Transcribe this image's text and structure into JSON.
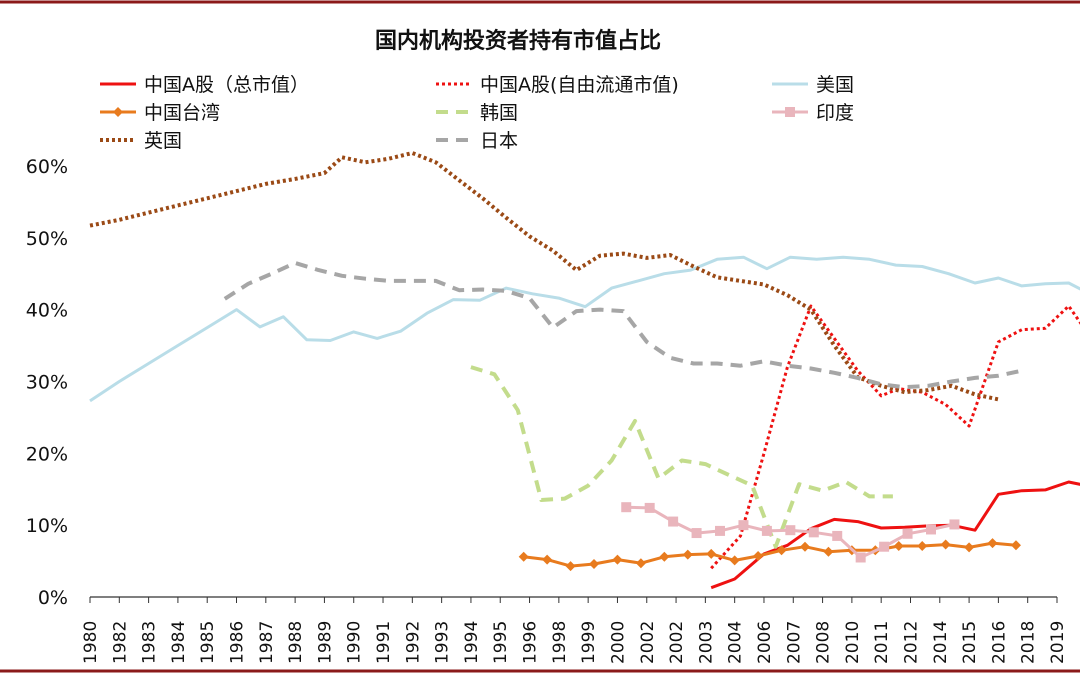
{
  "chart_data": {
    "type": "line",
    "title": "国内机构投资者持有市值占比",
    "xlabel": "",
    "ylabel": "",
    "ylim": [
      0,
      0.65
    ],
    "y_ticks": [
      {
        "value": 0.0,
        "label": "0%"
      },
      {
        "value": 0.1,
        "label": "10%"
      },
      {
        "value": 0.2,
        "label": "20%"
      },
      {
        "value": 0.3,
        "label": "30%"
      },
      {
        "value": 0.4,
        "label": "40%"
      },
      {
        "value": 0.5,
        "label": "50%"
      },
      {
        "value": 0.6,
        "label": "60%"
      }
    ],
    "x_tick_labels": [
      "1980",
      "1982",
      "1983",
      "1984",
      "1985",
      "1986",
      "1987",
      "1988",
      "1989",
      "1990",
      "1991",
      "1992",
      "1993",
      "1994",
      "1995",
      "1996",
      "1998",
      "1999",
      "2000",
      "2002",
      "2002",
      "2003",
      "2004",
      "2006",
      "2007",
      "2008",
      "2010",
      "2011",
      "2012",
      "2014",
      "2015",
      "2016",
      "2018",
      "2019"
    ],
    "grid": false,
    "legend_position": "top-left",
    "series": [
      {
        "name": "中国A股（总市值）",
        "color": "#ee1111",
        "style": "solid",
        "marker": "none",
        "width": 3,
        "points": [
          [
            21.2,
            0.013
          ],
          [
            22.0,
            0.025
          ],
          [
            23.0,
            0.06
          ],
          [
            23.8,
            0.072
          ],
          [
            24.6,
            0.095
          ],
          [
            25.4,
            0.108
          ],
          [
            26.2,
            0.105
          ],
          [
            27.0,
            0.096
          ],
          [
            27.8,
            0.097
          ],
          [
            28.6,
            0.099
          ],
          [
            29.4,
            0.1
          ],
          [
            30.2,
            0.093
          ],
          [
            31.0,
            0.143
          ],
          [
            31.8,
            0.148
          ],
          [
            32.6,
            0.149
          ],
          [
            33.4,
            0.16
          ],
          [
            34.0,
            0.155
          ]
        ]
      },
      {
        "name": "中国A股(自由流通市值)",
        "color": "#ee1111",
        "style": "dotted",
        "marker": "none",
        "width": 3,
        "points": [
          [
            21.2,
            0.04
          ],
          [
            22.2,
            0.085
          ],
          [
            23.0,
            0.2
          ],
          [
            23.8,
            0.32
          ],
          [
            24.6,
            0.405
          ],
          [
            25.4,
            0.36
          ],
          [
            26.2,
            0.315
          ],
          [
            27.0,
            0.28
          ],
          [
            27.6,
            0.29
          ],
          [
            28.4,
            0.285
          ],
          [
            29.2,
            0.268
          ],
          [
            30.0,
            0.238
          ],
          [
            31.0,
            0.355
          ],
          [
            31.8,
            0.372
          ],
          [
            32.6,
            0.374
          ],
          [
            33.4,
            0.405
          ],
          [
            34.0,
            0.37
          ]
        ]
      },
      {
        "name": "美国",
        "color": "#b9dde8",
        "style": "solid",
        "marker": "none",
        "width": 3,
        "points": [
          [
            0,
            0.273
          ],
          [
            1,
            0.3
          ],
          [
            2,
            0.325
          ],
          [
            3,
            0.35
          ],
          [
            4,
            0.375
          ],
          [
            5,
            0.4
          ],
          [
            5.8,
            0.376
          ],
          [
            6.6,
            0.39
          ],
          [
            7.4,
            0.358
          ],
          [
            8.2,
            0.357
          ],
          [
            9.0,
            0.369
          ],
          [
            9.8,
            0.36
          ],
          [
            10.6,
            0.37
          ],
          [
            11.5,
            0.395
          ],
          [
            12.4,
            0.414
          ],
          [
            13.3,
            0.413
          ],
          [
            14.2,
            0.43
          ],
          [
            15.1,
            0.422
          ],
          [
            16.0,
            0.416
          ],
          [
            16.9,
            0.404
          ],
          [
            17.8,
            0.43
          ],
          [
            18.7,
            0.44
          ],
          [
            19.6,
            0.45
          ],
          [
            20.5,
            0.455
          ],
          [
            21.4,
            0.47
          ],
          [
            22.3,
            0.473
          ],
          [
            23.1,
            0.457
          ],
          [
            23.9,
            0.473
          ],
          [
            24.8,
            0.47
          ],
          [
            25.7,
            0.473
          ],
          [
            26.6,
            0.47
          ],
          [
            27.5,
            0.462
          ],
          [
            28.4,
            0.46
          ],
          [
            29.3,
            0.45
          ],
          [
            30.2,
            0.437
          ],
          [
            31.0,
            0.444
          ],
          [
            31.8,
            0.433
          ],
          [
            32.6,
            0.436
          ],
          [
            33.4,
            0.437
          ],
          [
            34.2,
            0.42
          ]
        ]
      },
      {
        "name": "中国台湾",
        "color": "#e87b1e",
        "style": "solid",
        "marker": "diamond",
        "width": 3,
        "points": [
          [
            14.8,
            0.056
          ],
          [
            15.6,
            0.052
          ],
          [
            16.4,
            0.043
          ],
          [
            17.2,
            0.046
          ],
          [
            18.0,
            0.052
          ],
          [
            18.8,
            0.047
          ],
          [
            19.6,
            0.056
          ],
          [
            20.4,
            0.059
          ],
          [
            21.2,
            0.06
          ],
          [
            22.0,
            0.051
          ],
          [
            22.8,
            0.057
          ],
          [
            23.6,
            0.065
          ],
          [
            24.4,
            0.07
          ],
          [
            25.2,
            0.063
          ],
          [
            26.0,
            0.065
          ],
          [
            26.8,
            0.065
          ],
          [
            27.6,
            0.071
          ],
          [
            28.4,
            0.071
          ],
          [
            29.2,
            0.073
          ],
          [
            30.0,
            0.069
          ],
          [
            30.8,
            0.075
          ],
          [
            31.6,
            0.072
          ]
        ]
      },
      {
        "name": "韩国",
        "color": "#c3dc8c",
        "style": "dashed",
        "marker": "none",
        "width": 4,
        "points": [
          [
            13.0,
            0.32
          ],
          [
            13.8,
            0.31
          ],
          [
            14.6,
            0.26
          ],
          [
            15.4,
            0.135
          ],
          [
            16.2,
            0.137
          ],
          [
            17.0,
            0.155
          ],
          [
            17.8,
            0.19
          ],
          [
            18.6,
            0.245
          ],
          [
            19.4,
            0.165
          ],
          [
            20.2,
            0.19
          ],
          [
            21.0,
            0.185
          ],
          [
            21.8,
            0.17
          ],
          [
            22.6,
            0.155
          ],
          [
            23.4,
            0.07
          ],
          [
            24.2,
            0.157
          ],
          [
            25.0,
            0.148
          ],
          [
            25.8,
            0.16
          ],
          [
            26.6,
            0.14
          ],
          [
            27.4,
            0.14
          ]
        ]
      },
      {
        "name": "印度",
        "color": "#e9b5bc",
        "style": "solid",
        "marker": "square",
        "width": 3,
        "points": [
          [
            18.3,
            0.125
          ],
          [
            19.1,
            0.124
          ],
          [
            19.9,
            0.105
          ],
          [
            20.7,
            0.089
          ],
          [
            21.5,
            0.092
          ],
          [
            22.3,
            0.1
          ],
          [
            23.1,
            0.092
          ],
          [
            23.9,
            0.093
          ],
          [
            24.7,
            0.09
          ],
          [
            25.5,
            0.085
          ],
          [
            26.3,
            0.055
          ],
          [
            27.1,
            0.07
          ],
          [
            27.9,
            0.088
          ],
          [
            28.7,
            0.094
          ],
          [
            29.5,
            0.101
          ]
        ]
      },
      {
        "name": "英国",
        "color": "#9b4a16",
        "style": "dotted",
        "marker": "none",
        "width": 4,
        "points": [
          [
            0,
            0.517
          ],
          [
            1,
            0.525
          ],
          [
            2,
            0.535
          ],
          [
            3,
            0.545
          ],
          [
            4,
            0.555
          ],
          [
            5,
            0.565
          ],
          [
            6,
            0.575
          ],
          [
            7,
            0.582
          ],
          [
            8,
            0.59
          ],
          [
            8.6,
            0.612
          ],
          [
            9.4,
            0.605
          ],
          [
            10.2,
            0.61
          ],
          [
            11.0,
            0.618
          ],
          [
            11.8,
            0.605
          ],
          [
            12.6,
            0.58
          ],
          [
            13.4,
            0.555
          ],
          [
            14.2,
            0.528
          ],
          [
            15.0,
            0.502
          ],
          [
            15.8,
            0.482
          ],
          [
            16.6,
            0.455
          ],
          [
            17.4,
            0.475
          ],
          [
            18.2,
            0.478
          ],
          [
            19.0,
            0.472
          ],
          [
            19.8,
            0.476
          ],
          [
            20.6,
            0.46
          ],
          [
            21.4,
            0.445
          ],
          [
            22.2,
            0.44
          ],
          [
            23.0,
            0.435
          ],
          [
            23.8,
            0.42
          ],
          [
            24.6,
            0.4
          ],
          [
            25.4,
            0.35
          ],
          [
            26.2,
            0.306
          ],
          [
            27.0,
            0.294
          ],
          [
            27.8,
            0.285
          ],
          [
            28.6,
            0.288
          ],
          [
            29.4,
            0.294
          ],
          [
            30.2,
            0.282
          ],
          [
            31.0,
            0.275
          ]
        ]
      },
      {
        "name": "日本",
        "color": "#a6a6a6",
        "style": "dashed",
        "marker": "none",
        "width": 4,
        "points": [
          [
            4.6,
            0.415
          ],
          [
            5.4,
            0.436
          ],
          [
            6.2,
            0.45
          ],
          [
            7.0,
            0.465
          ],
          [
            7.8,
            0.455
          ],
          [
            8.6,
            0.447
          ],
          [
            9.4,
            0.443
          ],
          [
            10.2,
            0.44
          ],
          [
            11.0,
            0.44
          ],
          [
            11.8,
            0.44
          ],
          [
            12.6,
            0.427
          ],
          [
            13.4,
            0.428
          ],
          [
            14.2,
            0.426
          ],
          [
            15.0,
            0.416
          ],
          [
            15.8,
            0.375
          ],
          [
            16.6,
            0.398
          ],
          [
            17.4,
            0.4
          ],
          [
            18.2,
            0.398
          ],
          [
            19.0,
            0.355
          ],
          [
            19.8,
            0.333
          ],
          [
            20.6,
            0.325
          ],
          [
            21.4,
            0.325
          ],
          [
            22.2,
            0.322
          ],
          [
            23.0,
            0.328
          ],
          [
            23.8,
            0.322
          ],
          [
            24.6,
            0.318
          ],
          [
            25.4,
            0.312
          ],
          [
            26.2,
            0.305
          ],
          [
            27.0,
            0.296
          ],
          [
            27.8,
            0.292
          ],
          [
            28.6,
            0.294
          ],
          [
            29.4,
            0.3
          ],
          [
            30.2,
            0.305
          ],
          [
            31.0,
            0.308
          ],
          [
            31.8,
            0.315
          ]
        ]
      }
    ]
  }
}
